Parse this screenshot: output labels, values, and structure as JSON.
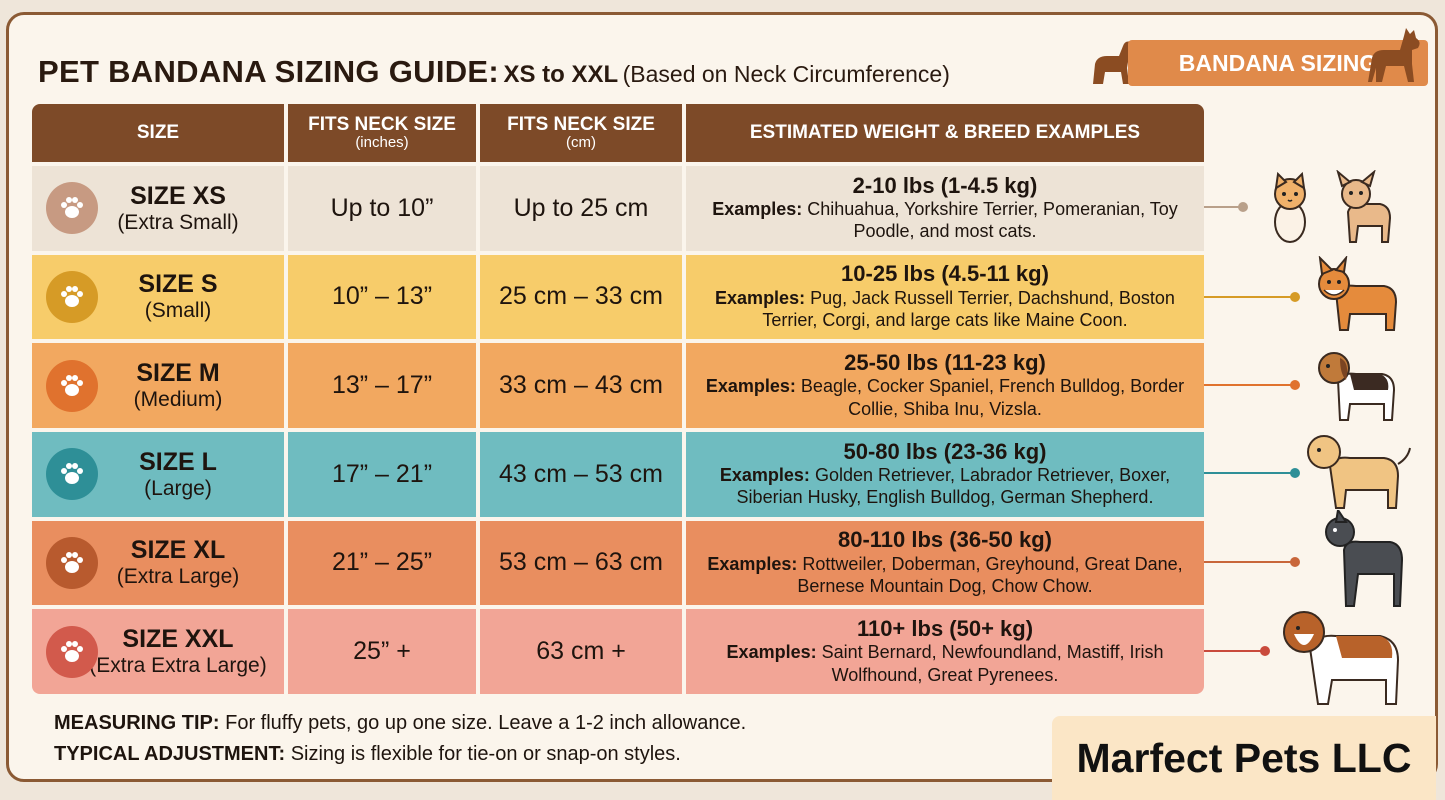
{
  "title": {
    "main": "PET BANDANA SIZING GUIDE:",
    "range": "XS to XXL",
    "note": "(Based on Neck Circumference)"
  },
  "badge": {
    "label": "BANDANA SIZING"
  },
  "table": {
    "headers": [
      {
        "label": "SIZE",
        "sub": ""
      },
      {
        "label": "FITS NECK SIZE",
        "sub": "(inches)"
      },
      {
        "label": "FITS NECK SIZE",
        "sub": "(cm)"
      },
      {
        "label": "ESTIMATED WEIGHT & BREED EXAMPLES",
        "sub": ""
      }
    ],
    "rows": [
      {
        "size": "SIZE XS",
        "size_sub": "(Extra Small)",
        "inches": "Up to 10”",
        "cm": "Up to 25 cm",
        "weight": "2-10 lbs (1-4.5 kg)",
        "examples_label": "Examples:",
        "examples": "Chihuahua, Yorkshire Terrier, Pomeranian, Toy Poodle, and most cats.",
        "paw_color": "#c79a82",
        "line_color": "#b9a08a",
        "icon": "cat-and-chihuahua-icon"
      },
      {
        "size": "SIZE S",
        "size_sub": "(Small)",
        "inches": "10” – 13”",
        "cm": "25 cm – 33 cm",
        "weight": "10-25 lbs (4.5-11 kg)",
        "examples_label": "Examples:",
        "examples": "Pug, Jack Russell Terrier, Dachshund, Boston Terrier, Corgi, and large cats like Maine Coon.",
        "paw_color": "#d69b26",
        "line_color": "#d69b26",
        "icon": "corgi-icon"
      },
      {
        "size": "SIZE M",
        "size_sub": "(Medium)",
        "inches": "13” – 17”",
        "cm": "33 cm – 43 cm",
        "weight": "25-50 lbs (11-23 kg)",
        "examples_label": "Examples:",
        "examples": "Beagle, Cocker Spaniel, French Bulldog, Border Collie, Shiba Inu, Vizsla.",
        "paw_color": "#e0722e",
        "line_color": "#e0722e",
        "icon": "beagle-icon"
      },
      {
        "size": "SIZE L",
        "size_sub": "(Large)",
        "inches": "17” – 21”",
        "cm": "43 cm – 53 cm",
        "weight": "50-80 lbs (23-36 kg)",
        "examples_label": "Examples:",
        "examples": "Golden Retriever, Labrador Retriever, Boxer, Siberian Husky, English Bulldog, German Shepherd.",
        "paw_color": "#2e8f97",
        "line_color": "#2e8f97",
        "icon": "labrador-icon"
      },
      {
        "size": "SIZE XL",
        "size_sub": "(Extra Large)",
        "inches": "21” – 25”",
        "cm": "53 cm – 63 cm",
        "weight": "80-110 lbs (36-50 kg)",
        "examples_label": "Examples:",
        "examples": "Rottweiler, Doberman, Greyhound, Great Dane, Bernese Mountain Dog, Chow Chow.",
        "paw_color": "#b85a2e",
        "line_color": "#c8663a",
        "icon": "great-dane-icon"
      },
      {
        "size": "SIZE XXL",
        "size_sub": "(Extra Extra Large)",
        "inches": "25” +",
        "cm": "63 cm +",
        "weight": "110+ lbs (50+ kg)",
        "examples_label": "Examples:",
        "examples": "Saint Bernard, Newfoundland, Mastiff, Irish Wolfhound, Great Pyrenees.",
        "paw_color": "#d25a4c",
        "line_color": "#c94a3c",
        "icon": "saint-bernard-icon"
      }
    ]
  },
  "tips": {
    "measuring_label": "MEASURING TIP:",
    "measuring": "For fluffy pets, go up one size. Leave a 1-2 inch allowance.",
    "adjustment_label": "TYPICAL ADJUSTMENT:",
    "adjustment": "Sizing is flexible for tie-on or snap-on styles."
  },
  "brand": {
    "name": "Marfect Pets LLC"
  }
}
